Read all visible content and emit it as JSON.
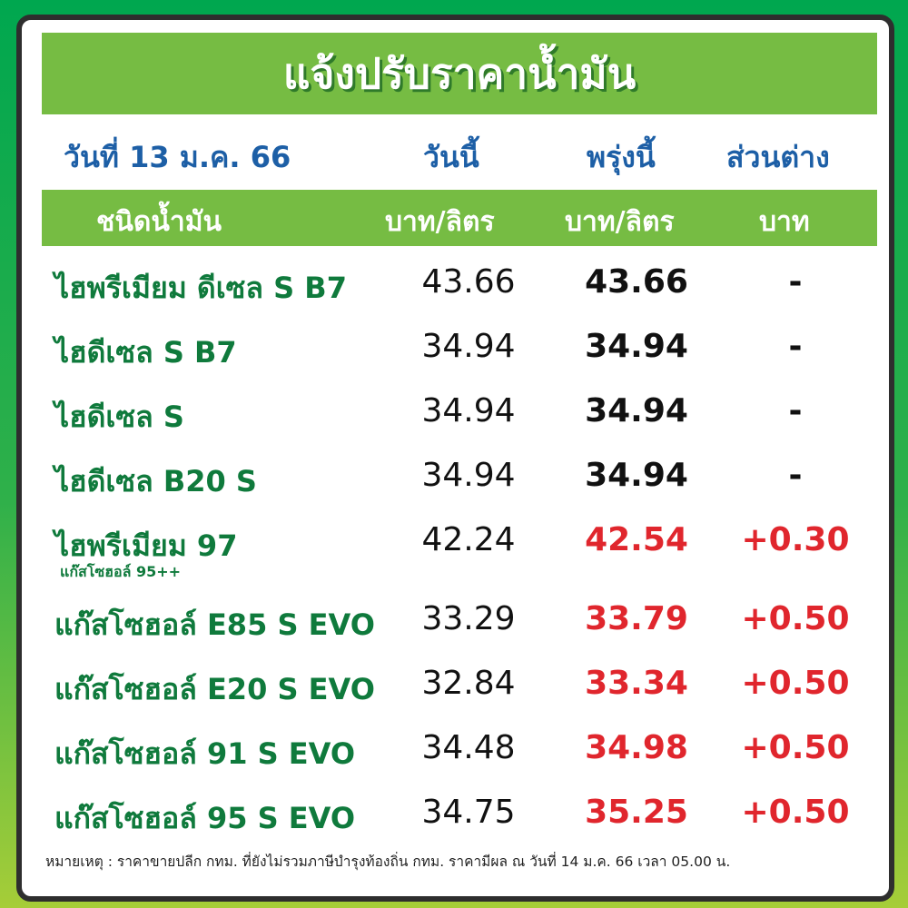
{
  "title": "แจ้งปรับราคาน้ำมัน",
  "date": "วันที่ 13 ม.ค. 66",
  "columns": {
    "today": "วันนี้",
    "tomorrow": "พรุ่งนี้",
    "diff": "ส่วนต่าง"
  },
  "units": {
    "type": "ชนิดน้ำมัน",
    "today": "บาท/ลิตร",
    "tomorrow": "บาท/ลิตร",
    "diff": "บาท"
  },
  "colors": {
    "green_bar": "#76bc43",
    "name_green": "#0f7a3c",
    "date_blue": "#1d5fa6",
    "increase_red": "#e0262d",
    "unchanged": "#111111"
  },
  "rows": [
    {
      "name": "ไฮพรีเมียม ดีเซล S B7",
      "sub": "",
      "today": "43.66",
      "tomorrow": "43.66",
      "diff": "-",
      "changed": false
    },
    {
      "name": "ไฮดีเซล S B7",
      "sub": "",
      "today": "34.94",
      "tomorrow": "34.94",
      "diff": "-",
      "changed": false
    },
    {
      "name": "ไฮดีเซล S",
      "sub": "",
      "today": "34.94",
      "tomorrow": "34.94",
      "diff": "-",
      "changed": false
    },
    {
      "name": "ไฮดีเซล B20 S",
      "sub": "",
      "today": "34.94",
      "tomorrow": "34.94",
      "diff": "-",
      "changed": false
    },
    {
      "name": "ไฮพรีเมียม 97",
      "sub": "แก๊สโซฮอล์ 95++",
      "today": "42.24",
      "tomorrow": "42.54",
      "diff": "+0.30",
      "changed": true
    },
    {
      "name": "แก๊สโซฮอล์ E85 S EVO",
      "sub": "",
      "today": "33.29",
      "tomorrow": "33.79",
      "diff": "+0.50",
      "changed": true
    },
    {
      "name": "แก๊สโซฮอล์ E20 S EVO",
      "sub": "",
      "today": "32.84",
      "tomorrow": "33.34",
      "diff": "+0.50",
      "changed": true
    },
    {
      "name": "แก๊สโซฮอล์ 91 S EVO",
      "sub": "",
      "today": "34.48",
      "tomorrow": "34.98",
      "diff": "+0.50",
      "changed": true
    },
    {
      "name": "แก๊สโซฮอล์ 95 S EVO",
      "sub": "",
      "today": "34.75",
      "tomorrow": "35.25",
      "diff": "+0.50",
      "changed": true
    }
  ],
  "note": "หมายเหตุ :  ราคาขายปลีก กทม. ที่ยังไม่รวมภาษีบำรุงท้องถิ่น กทม.  ราคามีผล ณ วันที่ 14 ม.ค. 66 เวลา 05.00 น."
}
